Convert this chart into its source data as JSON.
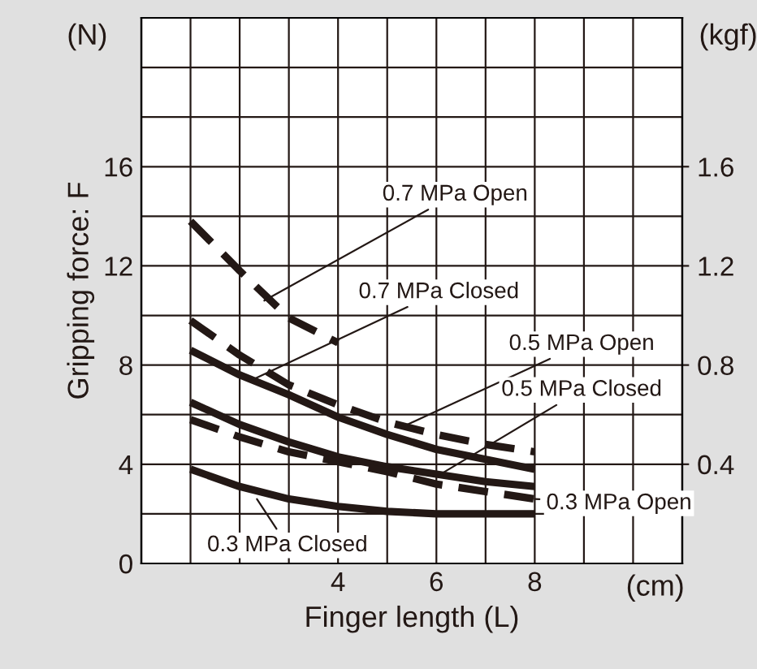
{
  "chart_data": {
    "type": "line",
    "xlabel": "Finger length (L)",
    "ylabel": "Gripping force: F",
    "xlim": [
      0,
      11
    ],
    "ylim": [
      0,
      22
    ],
    "y2lim": [
      0,
      2.2
    ],
    "xticks": [
      {
        "value": 0,
        "label": null
      },
      {
        "value": 1,
        "label": null
      },
      {
        "value": 2,
        "label": null
      },
      {
        "value": 3,
        "label": null
      },
      4,
      {
        "value": 5,
        "label": null
      },
      6,
      {
        "value": 7,
        "label": null
      },
      8,
      {
        "value": 9,
        "label": null
      },
      {
        "value": 10,
        "label": null
      },
      {
        "value": 11,
        "label": null
      }
    ],
    "yticks": [
      0,
      {
        "value": 2,
        "label": null
      },
      4,
      {
        "value": 6,
        "label": null
      },
      8,
      {
        "value": 10,
        "label": null
      },
      12,
      {
        "value": 14,
        "label": null
      },
      16,
      {
        "value": 18,
        "label": null
      },
      {
        "value": 20,
        "label": null
      },
      {
        "value": 22,
        "label": null
      }
    ],
    "y2ticks": [
      0.4,
      0.8,
      1.2,
      1.6
    ],
    "grid": true,
    "marker": "none",
    "series": [
      {
        "color": "#231815",
        "line_style": "dashed",
        "x": [
          1,
          2,
          3,
          4
        ],
        "values": [
          13.8,
          11.8,
          9.9,
          8.9
        ]
      },
      {
        "color": "#231815",
        "line_style": "solid",
        "x": [
          1,
          2,
          3,
          4,
          5,
          6,
          7,
          8
        ],
        "values": [
          8.6,
          7.6,
          6.8,
          5.9,
          5.2,
          4.6,
          4.2,
          3.8
        ]
      },
      {
        "color": "#231815",
        "line_style": "dashed",
        "x": [
          1,
          2,
          3,
          4,
          5,
          6,
          7,
          8
        ],
        "values": [
          9.8,
          8.4,
          7.2,
          6.4,
          5.7,
          5.2,
          4.8,
          4.5
        ]
      },
      {
        "color": "#231815",
        "line_style": "solid",
        "x": [
          1,
          2,
          3,
          4,
          5,
          6,
          7,
          8
        ],
        "values": [
          6.5,
          5.6,
          4.9,
          4.3,
          3.9,
          3.6,
          3.3,
          3.1
        ]
      },
      {
        "color": "#231815",
        "line_style": "dashed",
        "x": [
          1,
          2,
          3,
          4,
          5,
          6,
          7,
          8
        ],
        "values": [
          5.8,
          5.1,
          4.5,
          4.1,
          3.7,
          3.2,
          2.9,
          2.6
        ]
      },
      {
        "color": "#231815",
        "line_style": "solid",
        "x": [
          1,
          2,
          3,
          4,
          5,
          6,
          7,
          8
        ],
        "values": [
          3.8,
          3.1,
          2.6,
          2.3,
          2.1,
          2.0,
          2.0,
          2.0
        ]
      }
    ],
    "annotations": [
      {
        "text": "0.7 MPa Open",
        "x": 2.5,
        "y": 10.6
      },
      {
        "text": "0.7 MPa Closed",
        "x": 2.25,
        "y": 7.4
      },
      {
        "text": "0.5 MPa Open",
        "x": 5.3,
        "y": 5.5
      },
      {
        "text": "0.5 MPa Closed",
        "x": 6.0,
        "y": 3.5
      },
      {
        "text": "0.3 MPa Open",
        "x": 8,
        "y": 2.6
      },
      {
        "text": "0.3 MPa Closed",
        "x": 2.35,
        "y": 2.6
      },
      "(N)",
      "(kgf)",
      "(cm)"
    ]
  }
}
